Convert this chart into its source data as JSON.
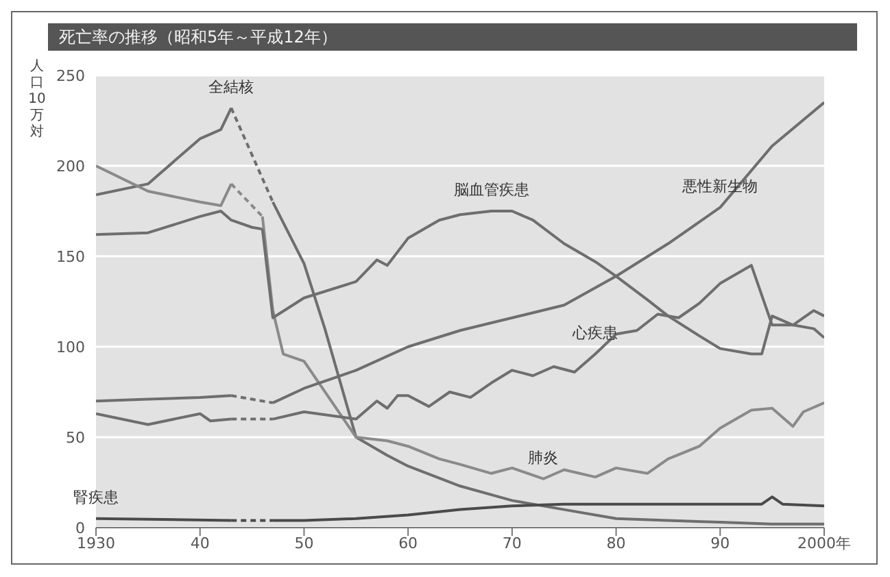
{
  "chart_data": {
    "type": "line",
    "title": "死亡率の推移（昭和5年～平成12年）",
    "ylabel": "人口10万対",
    "xlim": [
      1930,
      2000
    ],
    "xticks": [
      1930,
      {
        "value": 1940,
        "label": "40"
      },
      {
        "value": 1950,
        "label": "50"
      },
      {
        "value": 1960,
        "label": "60"
      },
      {
        "value": 1970,
        "label": "70"
      },
      {
        "value": 1980,
        "label": "80"
      },
      {
        "value": 1990,
        "label": "90"
      },
      {
        "value": 2000,
        "label": "2000年"
      }
    ],
    "ylim": [
      0,
      250
    ],
    "yticks": [
      0,
      50,
      100,
      150,
      200,
      250
    ],
    "grid": "y",
    "marker": "none",
    "line_style": "solid",
    "series": [
      {
        "color": "#6e6e6e",
        "x": [
          1930,
          1935,
          1938,
          1940,
          1942,
          1943
        ],
        "values": [
          184,
          190,
          205,
          215,
          220,
          232
        ]
      },
      {
        "color": "#6e6e6e",
        "line_style": "dashed",
        "x": [
          1943,
          1947
        ],
        "values": [
          232,
          180
        ]
      },
      {
        "color": "#6e6e6e",
        "x": [
          1947,
          1950,
          1952,
          1955,
          1958,
          1960,
          1965,
          1970,
          1975,
          1980,
          1985,
          1990,
          1995,
          2000
        ],
        "values": [
          180,
          146,
          110,
          50,
          40,
          34,
          23,
          15,
          10,
          5,
          4,
          3,
          2,
          2
        ]
      },
      {
        "color": "#8a8a8a",
        "x": [
          1930,
          1935,
          1940,
          1942,
          1943
        ],
        "values": [
          200,
          186,
          180,
          178,
          190
        ]
      },
      {
        "color": "#8a8a8a",
        "line_style": "dashed",
        "x": [
          1943,
          1946
        ],
        "values": [
          190,
          172
        ]
      },
      {
        "color": "#8a8a8a",
        "x": [
          1946,
          1947,
          1948,
          1950,
          1955,
          1958,
          1960,
          1963,
          1965,
          1968,
          1970,
          1973,
          1975,
          1978,
          1980,
          1983,
          1985,
          1988,
          1990,
          1993,
          1995,
          1997,
          1998,
          2000
        ],
        "values": [
          172,
          120,
          96,
          92,
          50,
          48,
          45,
          38,
          35,
          30,
          33,
          27,
          32,
          28,
          33,
          30,
          38,
          45,
          55,
          65,
          66,
          56,
          64,
          69
        ]
      },
      {
        "color": "#6e6e6e",
        "x": [
          1930,
          1935,
          1940,
          1942,
          1943,
          1945,
          1946
        ],
        "values": [
          162,
          163,
          172,
          175,
          170,
          166,
          165
        ]
      },
      {
        "color": "#6e6e6e",
        "x": [
          1946,
          1947,
          1950,
          1955,
          1957,
          1958,
          1960,
          1963,
          1965,
          1968,
          1970,
          1972,
          1975,
          1978,
          1980,
          1983,
          1985,
          1988,
          1990,
          1993,
          1994,
          1995,
          1997,
          1999,
          2000
        ],
        "values": [
          165,
          116,
          127,
          136,
          148,
          145,
          160,
          170,
          173,
          175,
          175,
          170,
          157,
          147,
          139,
          126,
          117,
          106,
          99,
          96,
          96,
          117,
          112,
          110,
          105
        ]
      },
      {
        "color": "#6e6e6e",
        "x": [
          1930,
          1935,
          1940,
          1943
        ],
        "values": [
          70,
          71,
          72,
          73
        ]
      },
      {
        "color": "#6e6e6e",
        "line_style": "dashed",
        "x": [
          1943,
          1947
        ],
        "values": [
          73,
          69
        ]
      },
      {
        "color": "#6e6e6e",
        "x": [
          1947,
          1950,
          1955,
          1960,
          1965,
          1970,
          1975,
          1980,
          1985,
          1990,
          1995,
          2000
        ],
        "values": [
          69,
          77,
          87,
          100,
          109,
          116,
          123,
          139,
          157,
          177,
          211,
          235
        ]
      },
      {
        "color": "#6e6e6e",
        "x": [
          1930,
          1935,
          1940,
          1941,
          1943
        ],
        "values": [
          63,
          57,
          63,
          59,
          60
        ]
      },
      {
        "color": "#6e6e6e",
        "line_style": "dashed",
        "x": [
          1943,
          1947
        ],
        "values": [
          60,
          60
        ]
      },
      {
        "color": "#6e6e6e",
        "x": [
          1947,
          1950,
          1955,
          1957,
          1958,
          1959,
          1960,
          1962,
          1964,
          1966,
          1968,
          1970,
          1972,
          1974,
          1976,
          1978,
          1980,
          1982,
          1984,
          1986,
          1988,
          1990,
          1993,
          1995,
          1997,
          1999,
          2000
        ],
        "values": [
          60,
          64,
          60,
          70,
          66,
          73,
          73,
          67,
          75,
          72,
          80,
          87,
          84,
          89,
          86,
          96,
          107,
          109,
          118,
          116,
          124,
          135,
          145,
          112,
          112,
          120,
          117
        ]
      },
      {
        "color": "#4a4a4a",
        "x": [
          1930,
          1943
        ],
        "values": [
          5,
          4
        ]
      },
      {
        "color": "#4a4a4a",
        "line_style": "dashed",
        "x": [
          1943,
          1947
        ],
        "values": [
          4,
          4
        ]
      },
      {
        "color": "#4a4a4a",
        "x": [
          1947,
          1950,
          1955,
          1960,
          1965,
          1970,
          1975,
          1980,
          1985,
          1990,
          1994,
          1995,
          1996,
          2000
        ],
        "values": [
          4,
          4,
          5,
          7,
          10,
          12,
          13,
          13,
          13,
          13,
          13,
          17,
          13,
          12
        ]
      }
    ],
    "annotations": [
      {
        "text": "全結核",
        "x": 1943,
        "y": 232
      },
      {
        "text": "脳血管疾患",
        "x": 1968,
        "y": 175
      },
      {
        "text": "悪性新生物",
        "x": 1990,
        "y": 177
      },
      {
        "text": "心疾患",
        "x": 1978,
        "y": 96
      },
      {
        "text": "肺炎",
        "x": 1973,
        "y": 27
      },
      {
        "text": "腎疾患",
        "x": 1930,
        "y": 5
      }
    ]
  }
}
